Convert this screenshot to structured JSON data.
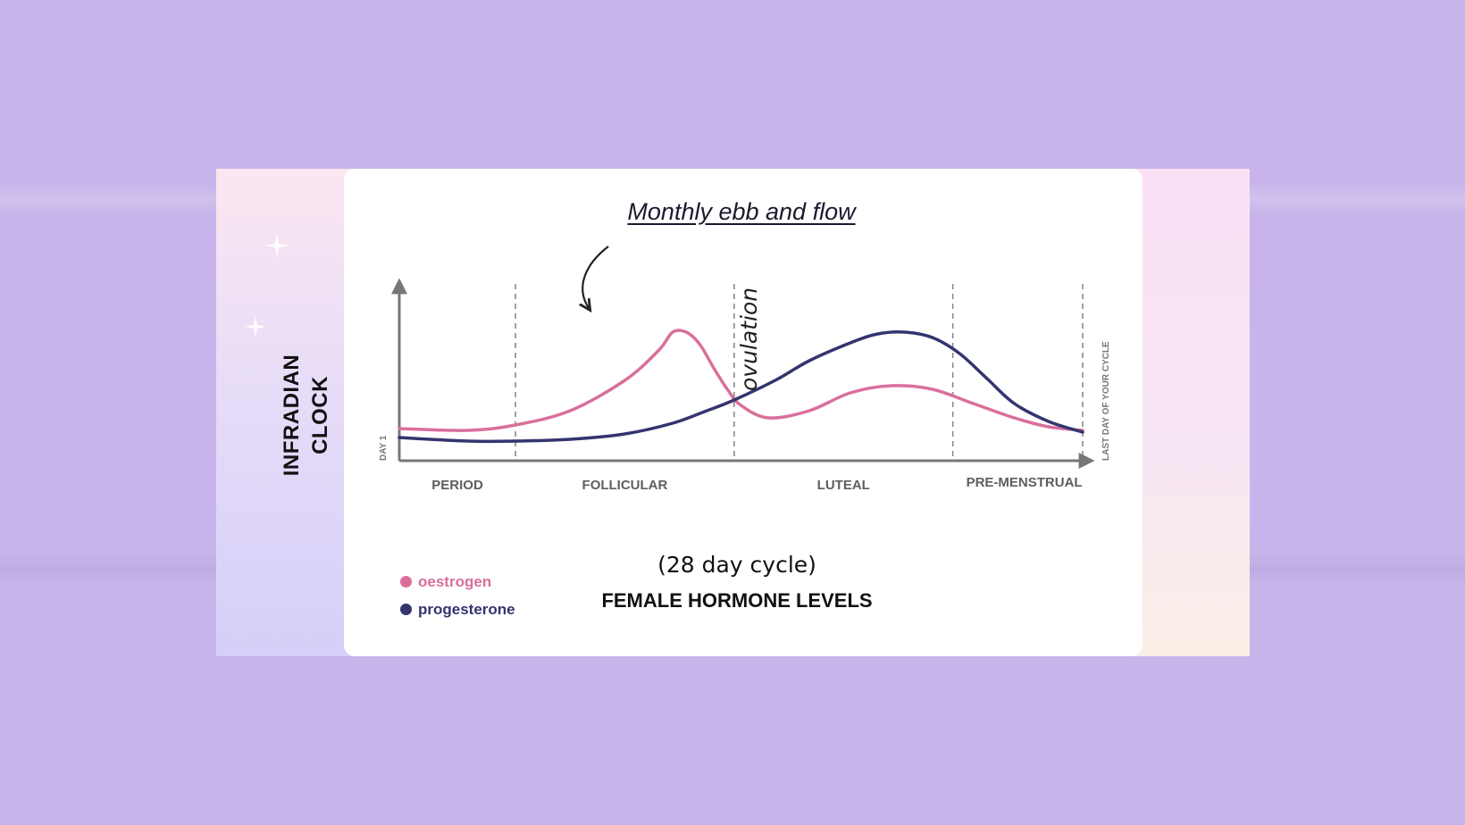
{
  "side_label": [
    "INFRADIAN",
    "CLOCK"
  ],
  "colors": {
    "background": "#c6b4ea",
    "oestrogen": "#d96f9c",
    "progesterone": "#34346f",
    "axis": "#777777"
  },
  "chart_data": {
    "type": "line",
    "title": "Monthly ebb and flow",
    "subtitle": "FEMALE HORMONE LEVELS",
    "caption": "(28 day cycle)",
    "y_axis_label": "DAY 1",
    "x_end_label": "LAST DAY OF YOUR CYCLE",
    "annotation": "ovulation",
    "phases": [
      "PERIOD",
      "FOLLICULAR",
      "LUTEAL",
      "PRE-MENSTRUAL"
    ],
    "phase_boundaries": [
      0.17,
      0.49,
      0.81,
      1.0
    ],
    "ovulation_x": 0.49,
    "grid": false,
    "legend_position": "bottom-left",
    "y_values": "relative level 0–1, unlabeled",
    "series": [
      {
        "name": "oestrogen",
        "color": "#d96f9c",
        "x": [
          0,
          0.1,
          0.17,
          0.25,
          0.33,
          0.38,
          0.4,
          0.42,
          0.44,
          0.46,
          0.48,
          0.5,
          0.54,
          0.6,
          0.66,
          0.72,
          0.78,
          0.84,
          0.9,
          0.95,
          1.0
        ],
        "y": [
          0.18,
          0.17,
          0.2,
          0.28,
          0.45,
          0.62,
          0.72,
          0.72,
          0.65,
          0.52,
          0.4,
          0.31,
          0.24,
          0.28,
          0.38,
          0.42,
          0.4,
          0.32,
          0.24,
          0.19,
          0.17
        ]
      },
      {
        "name": "progesterone",
        "color": "#34346f",
        "x": [
          0,
          0.1,
          0.17,
          0.25,
          0.33,
          0.4,
          0.45,
          0.49,
          0.55,
          0.6,
          0.66,
          0.7,
          0.74,
          0.78,
          0.82,
          0.86,
          0.9,
          0.95,
          1.0
        ],
        "y": [
          0.13,
          0.11,
          0.11,
          0.12,
          0.15,
          0.21,
          0.28,
          0.34,
          0.45,
          0.56,
          0.66,
          0.71,
          0.72,
          0.69,
          0.6,
          0.46,
          0.32,
          0.22,
          0.16
        ]
      }
    ]
  }
}
